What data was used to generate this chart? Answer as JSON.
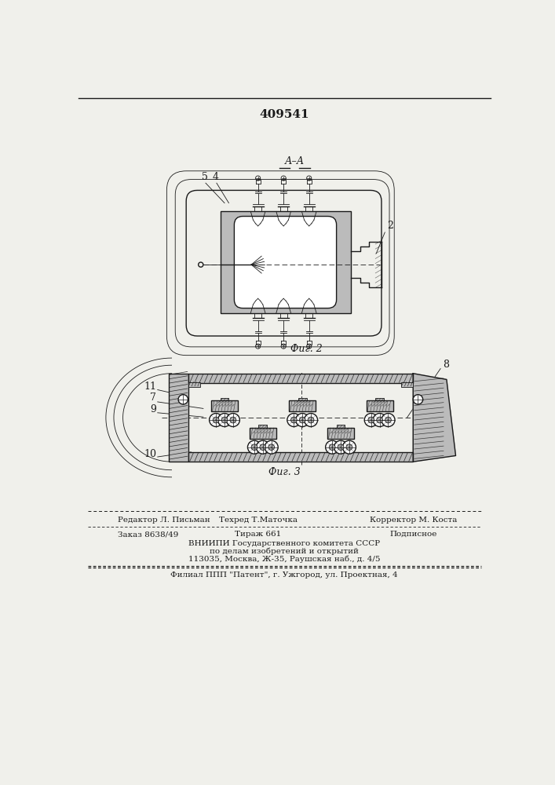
{
  "patent_number": "409541",
  "fig2_label": "Фиг. 2",
  "fig3_label": "Фиг. 3",
  "section_label": "А–А",
  "label_5": "5",
  "label_4": "4",
  "label_2": "2",
  "label_11": "11",
  "label_7": "7",
  "label_9": "9",
  "label_10": "10",
  "label_8": "8",
  "footer_line1_left": "Редактор Л. Письман",
  "footer_line1_mid": "Техред Т.Маточка",
  "footer_line1_right": "Корректор М. Коста",
  "footer_line2_left": "Заказ 8638/49",
  "footer_line2_mid": "Тираж 661",
  "footer_line2_right": "Подписное",
  "footer_line3": "ВНИИПИ Государственного комитета СССР",
  "footer_line4": "по делам изобретений и открытий",
  "footer_line5": "113035, Москва, Ж-35, Раушская наб., д. 4/5",
  "footer_line6": "Филиал ППП \"Патент\", г. Ужгород, ул. Проектная, 4",
  "bg_color": "#f0f0eb",
  "line_color": "#1a1a1a",
  "wall_color": "#bbbbbb",
  "fig_width": 7.07,
  "fig_height": 10.0
}
